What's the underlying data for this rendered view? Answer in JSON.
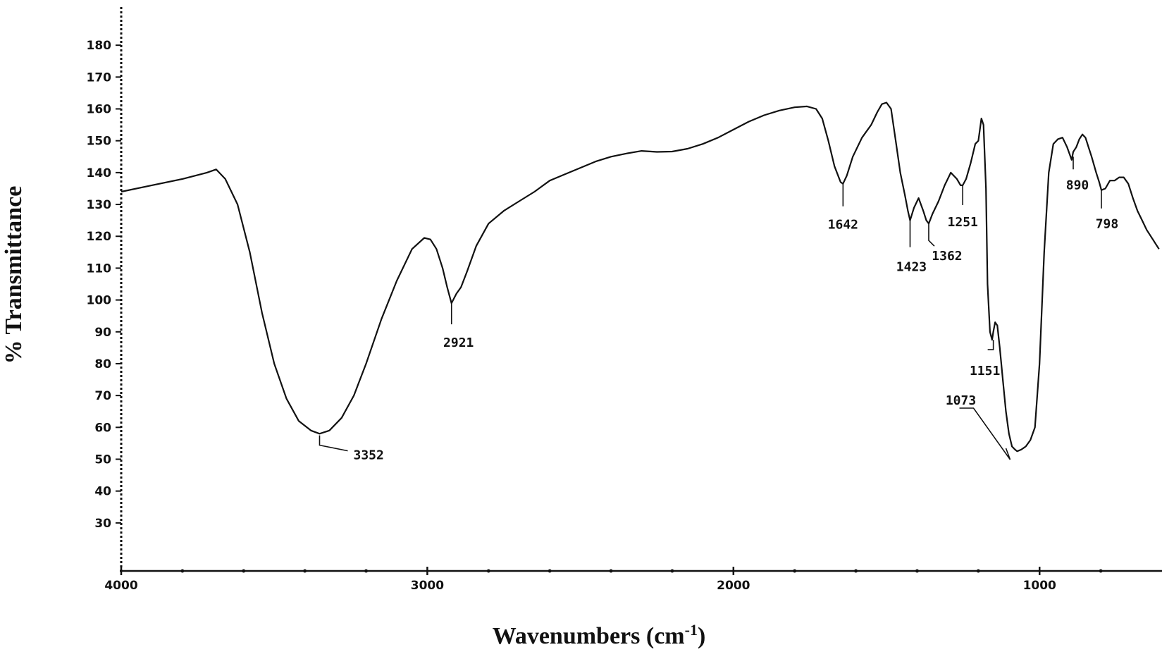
{
  "chart_data": {
    "type": "line",
    "xlabel": "Wavenumbers (cm",
    "xlabel_sup": "-1",
    "xlabel_close": ")",
    "ylabel": "% Transmittance",
    "xlim": [
      4000,
      600
    ],
    "x_reversed": true,
    "ylim": [
      22,
      188
    ],
    "x_ticks": [
      4000,
      3000,
      2000,
      1000
    ],
    "x_tick_labels": [
      "4000",
      "3000",
      "2000",
      "1000"
    ],
    "x_minor_ticks": [
      3800,
      3600,
      3400,
      3200,
      2800,
      2600,
      2400,
      2200,
      1800,
      1600,
      1400,
      1200,
      800
    ],
    "y_ticks": [
      30,
      40,
      50,
      60,
      70,
      80,
      90,
      100,
      110,
      120,
      130,
      140,
      150,
      160,
      170,
      180
    ],
    "y_tick_labels": [
      "30",
      "40",
      "50",
      "60",
      "70",
      "80",
      "90",
      "100",
      "110",
      "120",
      "130",
      "140",
      "150",
      "160",
      "170",
      "180"
    ],
    "grid": false,
    "series": [
      {
        "color": "#111111",
        "x": [
          4000,
          3900,
          3800,
          3720,
          3690,
          3660,
          3620,
          3580,
          3540,
          3500,
          3460,
          3420,
          3380,
          3352,
          3320,
          3280,
          3240,
          3200,
          3150,
          3100,
          3050,
          3010,
          2990,
          2970,
          2950,
          2935,
          2921,
          2905,
          2890,
          2870,
          2840,
          2800,
          2750,
          2700,
          2650,
          2600,
          2550,
          2500,
          2450,
          2400,
          2350,
          2300,
          2250,
          2200,
          2150,
          2100,
          2050,
          2000,
          1950,
          1900,
          1850,
          1800,
          1760,
          1730,
          1710,
          1690,
          1670,
          1650,
          1642,
          1630,
          1610,
          1580,
          1550,
          1530,
          1515,
          1500,
          1485,
          1470,
          1455,
          1440,
          1430,
          1423,
          1410,
          1395,
          1380,
          1370,
          1362,
          1350,
          1330,
          1310,
          1290,
          1270,
          1258,
          1251,
          1240,
          1225,
          1210,
          1200,
          1190,
          1183,
          1175,
          1170,
          1162,
          1155,
          1151,
          1145,
          1138,
          1130,
          1120,
          1110,
          1100,
          1090,
          1080,
          1073,
          1060,
          1045,
          1030,
          1015,
          1000,
          985,
          970,
          955,
          940,
          925,
          910,
          895,
          890,
          880,
          870,
          860,
          850,
          840,
          830,
          815,
          805,
          798,
          785,
          770,
          755,
          740,
          725,
          710,
          695,
          680,
          665,
          650,
          630,
          610
        ],
        "y": [
          134,
          136,
          138,
          140,
          141,
          138,
          130,
          115,
          96,
          80,
          69,
          62,
          59,
          58,
          59,
          63,
          70,
          80,
          94,
          106,
          116,
          119.5,
          119,
          116,
          110,
          104,
          99,
          102,
          104,
          109,
          117,
          124,
          128,
          131,
          134,
          137.5,
          139.5,
          141.5,
          143.5,
          145,
          146,
          146.8,
          146.5,
          146.6,
          147.5,
          149,
          151,
          153.5,
          156,
          158,
          159.5,
          160.5,
          160.8,
          160,
          157,
          150,
          142,
          137,
          136.5,
          139,
          145,
          151,
          155,
          159,
          161.5,
          162,
          160,
          150,
          140,
          133,
          128,
          125,
          129,
          132,
          128,
          125,
          124,
          127,
          131,
          136,
          140,
          138,
          136,
          136,
          138,
          143,
          149,
          150,
          157,
          155,
          135,
          105,
          90,
          87.5,
          90,
          93,
          92,
          85,
          75,
          65,
          58,
          54,
          53,
          52.5,
          53,
          54,
          56,
          60,
          80,
          115,
          140,
          149,
          150.5,
          151,
          148,
          144,
          146.5,
          148,
          150.5,
          152,
          151,
          148,
          145,
          140,
          137,
          134.5,
          135,
          137.5,
          137.5,
          138.5,
          138.5,
          136.5,
          132,
          128,
          125,
          122,
          119,
          116
        ]
      }
    ],
    "annotations": [
      {
        "text": "3352",
        "x": 3352,
        "y": 57.5
      },
      {
        "text": "2921",
        "x": 2921,
        "y": 99
      },
      {
        "text": "1642",
        "x": 1642,
        "y": 136.5
      },
      {
        "text": "1423",
        "x": 1423,
        "y": 125
      },
      {
        "text": "1362",
        "x": 1362,
        "y": 124
      },
      {
        "text": "1251",
        "x": 1251,
        "y": 136
      },
      {
        "text": "1151",
        "x": 1151,
        "y": 87.5
      },
      {
        "text": "1073",
        "x": 1073,
        "y": 49
      },
      {
        "text": "890",
        "x": 890,
        "y": 145
      },
      {
        "text": "798",
        "x": 798,
        "y": 134.5
      }
    ]
  }
}
